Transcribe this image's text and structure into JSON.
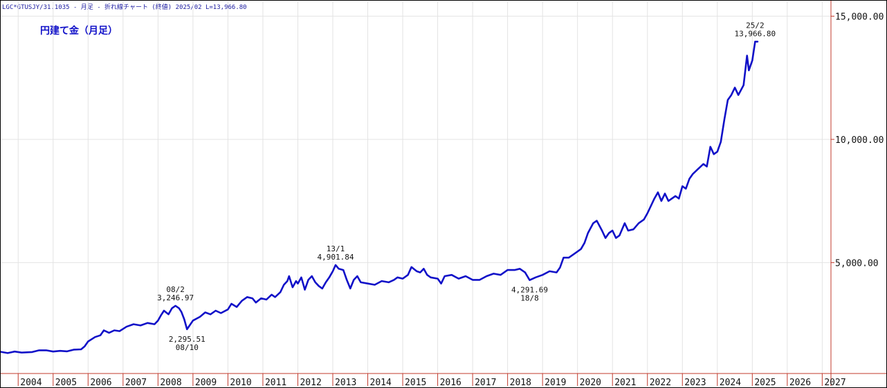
{
  "header_text": "LGC*GTUSJY/31.1035 - 月足 - 折れ線チャート (終値)  2025/02 L=13,966.80",
  "chart_data": {
    "type": "line",
    "title": "円建て金（月足）",
    "xlabel": "",
    "ylabel": "",
    "x_ticks": [
      "2004",
      "2005",
      "2006",
      "2007",
      "2008",
      "2009",
      "2010",
      "2011",
      "2012",
      "2013",
      "2014",
      "2015",
      "2016",
      "2017",
      "2018",
      "2019",
      "2020",
      "2021",
      "2022",
      "2023",
      "2024",
      "2025",
      "2026",
      "2027"
    ],
    "y_ticks": [
      {
        "value": 5000,
        "label": "5,000.00"
      },
      {
        "value": 10000,
        "label": "10,000.00"
      },
      {
        "value": 15000,
        "label": "15,000.00"
      }
    ],
    "ylim": [
      500,
      15600
    ],
    "xlim": [
      2003.5,
      2027.25
    ],
    "grid": true,
    "line_color": "#1010c8",
    "series": [
      {
        "name": "",
        "points": [
          [
            2003.5,
            1380
          ],
          [
            2003.7,
            1330
          ],
          [
            2003.9,
            1390
          ],
          [
            2004.1,
            1350
          ],
          [
            2004.4,
            1370
          ],
          [
            2004.6,
            1440
          ],
          [
            2004.8,
            1440
          ],
          [
            2005.0,
            1390
          ],
          [
            2005.2,
            1420
          ],
          [
            2005.4,
            1400
          ],
          [
            2005.6,
            1470
          ],
          [
            2005.8,
            1480
          ],
          [
            2005.9,
            1600
          ],
          [
            2006.0,
            1800
          ],
          [
            2006.2,
            1980
          ],
          [
            2006.35,
            2050
          ],
          [
            2006.45,
            2250
          ],
          [
            2006.6,
            2150
          ],
          [
            2006.75,
            2250
          ],
          [
            2006.9,
            2220
          ],
          [
            2007.1,
            2400
          ],
          [
            2007.3,
            2500
          ],
          [
            2007.5,
            2450
          ],
          [
            2007.7,
            2550
          ],
          [
            2007.9,
            2500
          ],
          [
            2008.0,
            2650
          ],
          [
            2008.08,
            2850
          ],
          [
            2008.17,
            3050
          ],
          [
            2008.3,
            2900
          ],
          [
            2008.4,
            3150
          ],
          [
            2008.5,
            3246.97
          ],
          [
            2008.6,
            3150
          ],
          [
            2008.67,
            3000
          ],
          [
            2008.75,
            2700
          ],
          [
            2008.83,
            2295.51
          ],
          [
            2009.0,
            2650
          ],
          [
            2009.2,
            2800
          ],
          [
            2009.35,
            2980
          ],
          [
            2009.5,
            2900
          ],
          [
            2009.65,
            3050
          ],
          [
            2009.8,
            2950
          ],
          [
            2010.0,
            3100
          ],
          [
            2010.1,
            3330
          ],
          [
            2010.25,
            3200
          ],
          [
            2010.4,
            3450
          ],
          [
            2010.55,
            3600
          ],
          [
            2010.7,
            3550
          ],
          [
            2010.8,
            3380
          ],
          [
            2010.95,
            3550
          ],
          [
            2011.1,
            3500
          ],
          [
            2011.25,
            3700
          ],
          [
            2011.35,
            3600
          ],
          [
            2011.5,
            3800
          ],
          [
            2011.6,
            4100
          ],
          [
            2011.7,
            4250
          ],
          [
            2011.75,
            4450
          ],
          [
            2011.85,
            4000
          ],
          [
            2011.95,
            4250
          ],
          [
            2012.0,
            4150
          ],
          [
            2012.1,
            4400
          ],
          [
            2012.2,
            3900
          ],
          [
            2012.3,
            4300
          ],
          [
            2012.4,
            4450
          ],
          [
            2012.5,
            4200
          ],
          [
            2012.6,
            4050
          ],
          [
            2012.7,
            3950
          ],
          [
            2012.8,
            4200
          ],
          [
            2012.9,
            4400
          ],
          [
            2013.0,
            4650
          ],
          [
            2013.08,
            4901.84
          ],
          [
            2013.17,
            4750
          ],
          [
            2013.3,
            4700
          ],
          [
            2013.4,
            4300
          ],
          [
            2013.5,
            3950
          ],
          [
            2013.6,
            4300
          ],
          [
            2013.7,
            4450
          ],
          [
            2013.8,
            4200
          ],
          [
            2014.0,
            4150
          ],
          [
            2014.2,
            4100
          ],
          [
            2014.4,
            4250
          ],
          [
            2014.6,
            4200
          ],
          [
            2014.75,
            4300
          ],
          [
            2014.85,
            4400
          ],
          [
            2015.0,
            4350
          ],
          [
            2015.15,
            4500
          ],
          [
            2015.25,
            4820
          ],
          [
            2015.4,
            4650
          ],
          [
            2015.5,
            4600
          ],
          [
            2015.6,
            4750
          ],
          [
            2015.7,
            4500
          ],
          [
            2015.8,
            4400
          ],
          [
            2016.0,
            4350
          ],
          [
            2016.1,
            4150
          ],
          [
            2016.2,
            4450
          ],
          [
            2016.4,
            4500
          ],
          [
            2016.6,
            4350
          ],
          [
            2016.8,
            4450
          ],
          [
            2017.0,
            4300
          ],
          [
            2017.2,
            4300
          ],
          [
            2017.4,
            4450
          ],
          [
            2017.6,
            4550
          ],
          [
            2017.8,
            4500
          ],
          [
            2018.0,
            4700
          ],
          [
            2018.2,
            4700
          ],
          [
            2018.35,
            4750
          ],
          [
            2018.5,
            4600
          ],
          [
            2018.63,
            4291.69
          ],
          [
            2018.8,
            4400
          ],
          [
            2019.0,
            4500
          ],
          [
            2019.2,
            4650
          ],
          [
            2019.4,
            4600
          ],
          [
            2019.5,
            4800
          ],
          [
            2019.6,
            5200
          ],
          [
            2019.75,
            5200
          ],
          [
            2019.9,
            5350
          ],
          [
            2020.0,
            5450
          ],
          [
            2020.1,
            5550
          ],
          [
            2020.2,
            5800
          ],
          [
            2020.3,
            6200
          ],
          [
            2020.45,
            6600
          ],
          [
            2020.55,
            6700
          ],
          [
            2020.7,
            6300
          ],
          [
            2020.8,
            6000
          ],
          [
            2020.9,
            6200
          ],
          [
            2021.0,
            6300
          ],
          [
            2021.1,
            6000
          ],
          [
            2021.2,
            6100
          ],
          [
            2021.35,
            6600
          ],
          [
            2021.45,
            6300
          ],
          [
            2021.6,
            6350
          ],
          [
            2021.75,
            6600
          ],
          [
            2021.9,
            6750
          ],
          [
            2022.0,
            7000
          ],
          [
            2022.2,
            7600
          ],
          [
            2022.3,
            7850
          ],
          [
            2022.4,
            7500
          ],
          [
            2022.5,
            7800
          ],
          [
            2022.6,
            7500
          ],
          [
            2022.8,
            7700
          ],
          [
            2022.9,
            7600
          ],
          [
            2023.0,
            8100
          ],
          [
            2023.1,
            8000
          ],
          [
            2023.2,
            8400
          ],
          [
            2023.3,
            8600
          ],
          [
            2023.45,
            8800
          ],
          [
            2023.6,
            9000
          ],
          [
            2023.7,
            8900
          ],
          [
            2023.8,
            9700
          ],
          [
            2023.9,
            9400
          ],
          [
            2024.0,
            9500
          ],
          [
            2024.1,
            9900
          ],
          [
            2024.2,
            10800
          ],
          [
            2024.3,
            11600
          ],
          [
            2024.4,
            11800
          ],
          [
            2024.5,
            12100
          ],
          [
            2024.6,
            11800
          ],
          [
            2024.75,
            12200
          ],
          [
            2024.85,
            13400
          ],
          [
            2024.9,
            12800
          ],
          [
            2025.0,
            13200
          ],
          [
            2025.08,
            13966.8
          ],
          [
            2025.15,
            13966.8
          ]
        ]
      }
    ],
    "annotations": [
      {
        "x": 2008.5,
        "y": 3246.97,
        "lines": [
          "08/2",
          "3,246.97"
        ],
        "position": "above"
      },
      {
        "x": 2008.83,
        "y": 2295.51,
        "lines": [
          "2,295.51",
          "08/10"
        ],
        "position": "below"
      },
      {
        "x": 2013.08,
        "y": 4901.84,
        "lines": [
          "13/1",
          "4,901.84"
        ],
        "position": "above"
      },
      {
        "x": 2018.63,
        "y": 4291.69,
        "lines": [
          "4,291.69",
          "18/8"
        ],
        "position": "below"
      },
      {
        "x": 2025.08,
        "y": 13966.8,
        "lines": [
          "25/2",
          "13,966.80"
        ],
        "position": "above"
      }
    ]
  }
}
